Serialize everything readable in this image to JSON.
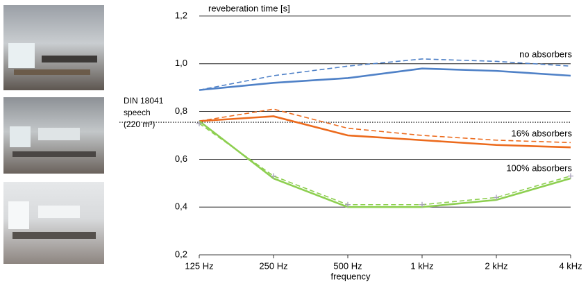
{
  "chart_data": {
    "type": "line",
    "title": "reveberation time [s]",
    "x_label": "frequency",
    "categories": [
      "125 Hz",
      "250 Hz",
      "500 Hz",
      "1 kHz",
      "2 kHz",
      "4 kHz"
    ],
    "ylim": [
      0.2,
      1.2
    ],
    "yticks": [
      {
        "value": 0.2,
        "label": "0,2"
      },
      {
        "value": 0.4,
        "label": "0,4"
      },
      {
        "value": 0.6,
        "label": "0,6"
      },
      {
        "value": 0.8,
        "label": "0,8"
      },
      {
        "value": 1.0,
        "label": "1,0"
      },
      {
        "value": 1.2,
        "label": "1,2"
      }
    ],
    "grid": true,
    "series": [
      {
        "name": "no absorbers",
        "color": "#4f81c7",
        "values": [
          0.89,
          0.92,
          0.94,
          0.98,
          0.97,
          0.95
        ]
      },
      {
        "color": "#4f81c7",
        "dash": true,
        "values": [
          0.89,
          0.95,
          0.99,
          1.02,
          1.01,
          0.99
        ]
      },
      {
        "name": "16% absorbers",
        "color": "#ec6a1c",
        "values": [
          0.76,
          0.78,
          0.7,
          0.68,
          0.66,
          0.65
        ]
      },
      {
        "color": "#ec6a1c",
        "dash": true,
        "values": [
          0.76,
          0.81,
          0.73,
          0.7,
          0.68,
          0.67
        ]
      },
      {
        "name": "100% absorbers",
        "color": "#8dcf50",
        "values": [
          0.76,
          0.52,
          0.4,
          0.4,
          0.43,
          0.52
        ]
      },
      {
        "color": "#8dcf50",
        "dash": true,
        "marker": "plus",
        "marker_color": "#a7a0b8",
        "values": [
          0.75,
          0.53,
          0.41,
          0.41,
          0.44,
          0.53
        ]
      }
    ],
    "reference": {
      "value": 0.755,
      "label": [
        "DIN 18041",
        "speech",
        "(220 m³)"
      ]
    }
  }
}
